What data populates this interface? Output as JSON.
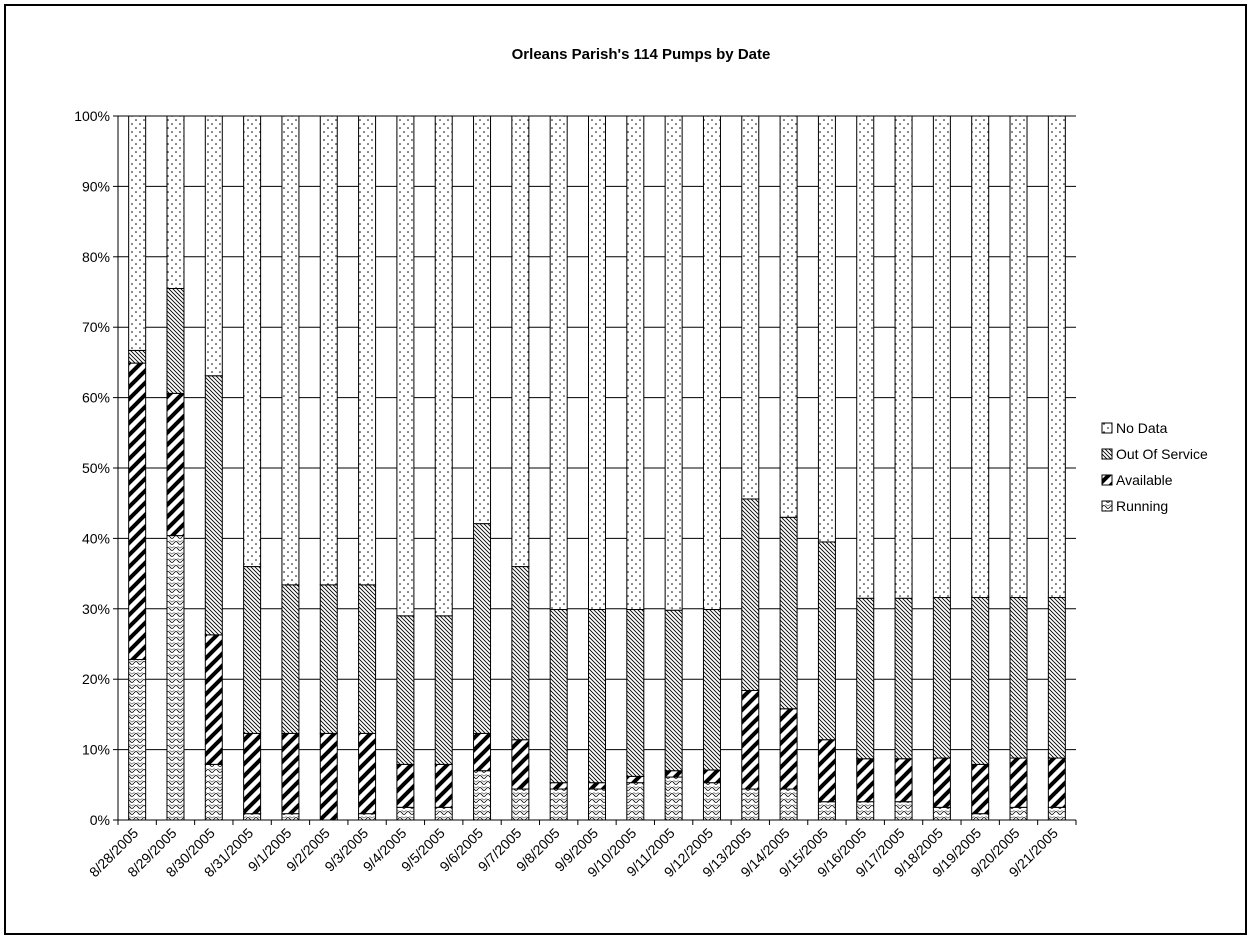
{
  "chart_data": {
    "type": "bar",
    "stacked": "percent",
    "title": "Orleans Parish's 114 Pumps by Date",
    "xlabel": "",
    "ylabel": "",
    "ylim": [
      0,
      100
    ],
    "yticks": [
      "0%",
      "10%",
      "20%",
      "30%",
      "40%",
      "50%",
      "60%",
      "70%",
      "80%",
      "90%",
      "100%"
    ],
    "grid": true,
    "legend_position": "right",
    "categories": [
      "8/28/2005",
      "8/29/2005",
      "8/30/2005",
      "8/31/2005",
      "9/1/2005",
      "9/2/2005",
      "9/3/2005",
      "9/4/2005",
      "9/5/2005",
      "9/6/2005",
      "9/7/2005",
      "9/8/2005",
      "9/9/2005",
      "9/10/2005",
      "9/11/2005",
      "9/12/2005",
      "9/13/2005",
      "9/14/2005",
      "9/15/2005",
      "9/16/2005",
      "9/17/2005",
      "9/18/2005",
      "9/19/2005",
      "9/20/2005",
      "9/21/2005"
    ],
    "series": [
      {
        "name": "Running",
        "pattern": "running",
        "values": [
          22.8,
          40.4,
          7.9,
          0.9,
          0.9,
          0,
          0.9,
          1.8,
          1.8,
          7.0,
          4.4,
          4.4,
          4.4,
          5.3,
          6.1,
          5.3,
          4.4,
          4.4,
          2.6,
          2.6,
          2.6,
          1.8,
          0.9,
          1.8,
          1.8
        ]
      },
      {
        "name": "Available",
        "pattern": "available",
        "values": [
          42.1,
          20.2,
          18.4,
          11.4,
          11.4,
          12.3,
          11.4,
          6.1,
          6.1,
          5.3,
          7.0,
          0.9,
          0.9,
          0.9,
          0.9,
          1.8,
          14.0,
          11.4,
          8.8,
          6.1,
          6.1,
          7.0,
          7.0,
          7.0,
          7.0
        ]
      },
      {
        "name": "Out Of Service",
        "pattern": "outofservice",
        "values": [
          1.8,
          14.9,
          36.8,
          23.7,
          21.1,
          21.1,
          21.1,
          21.1,
          21.1,
          29.8,
          24.6,
          24.6,
          24.6,
          23.7,
          22.8,
          22.8,
          27.2,
          27.2,
          28.1,
          22.8,
          22.8,
          22.8,
          23.7,
          22.8,
          22.8
        ]
      },
      {
        "name": "No Data",
        "pattern": "nodata",
        "values": [
          33.3,
          24.5,
          36.9,
          64.0,
          66.6,
          66.6,
          66.6,
          71.0,
          71.0,
          57.9,
          64.0,
          70.1,
          70.1,
          70.1,
          70.2,
          70.1,
          54.4,
          57.0,
          60.5,
          68.5,
          68.5,
          68.4,
          68.4,
          68.4,
          68.4
        ]
      }
    ],
    "legend_order": [
      "No Data",
      "Out Of Service",
      "Available",
      "Running"
    ]
  }
}
